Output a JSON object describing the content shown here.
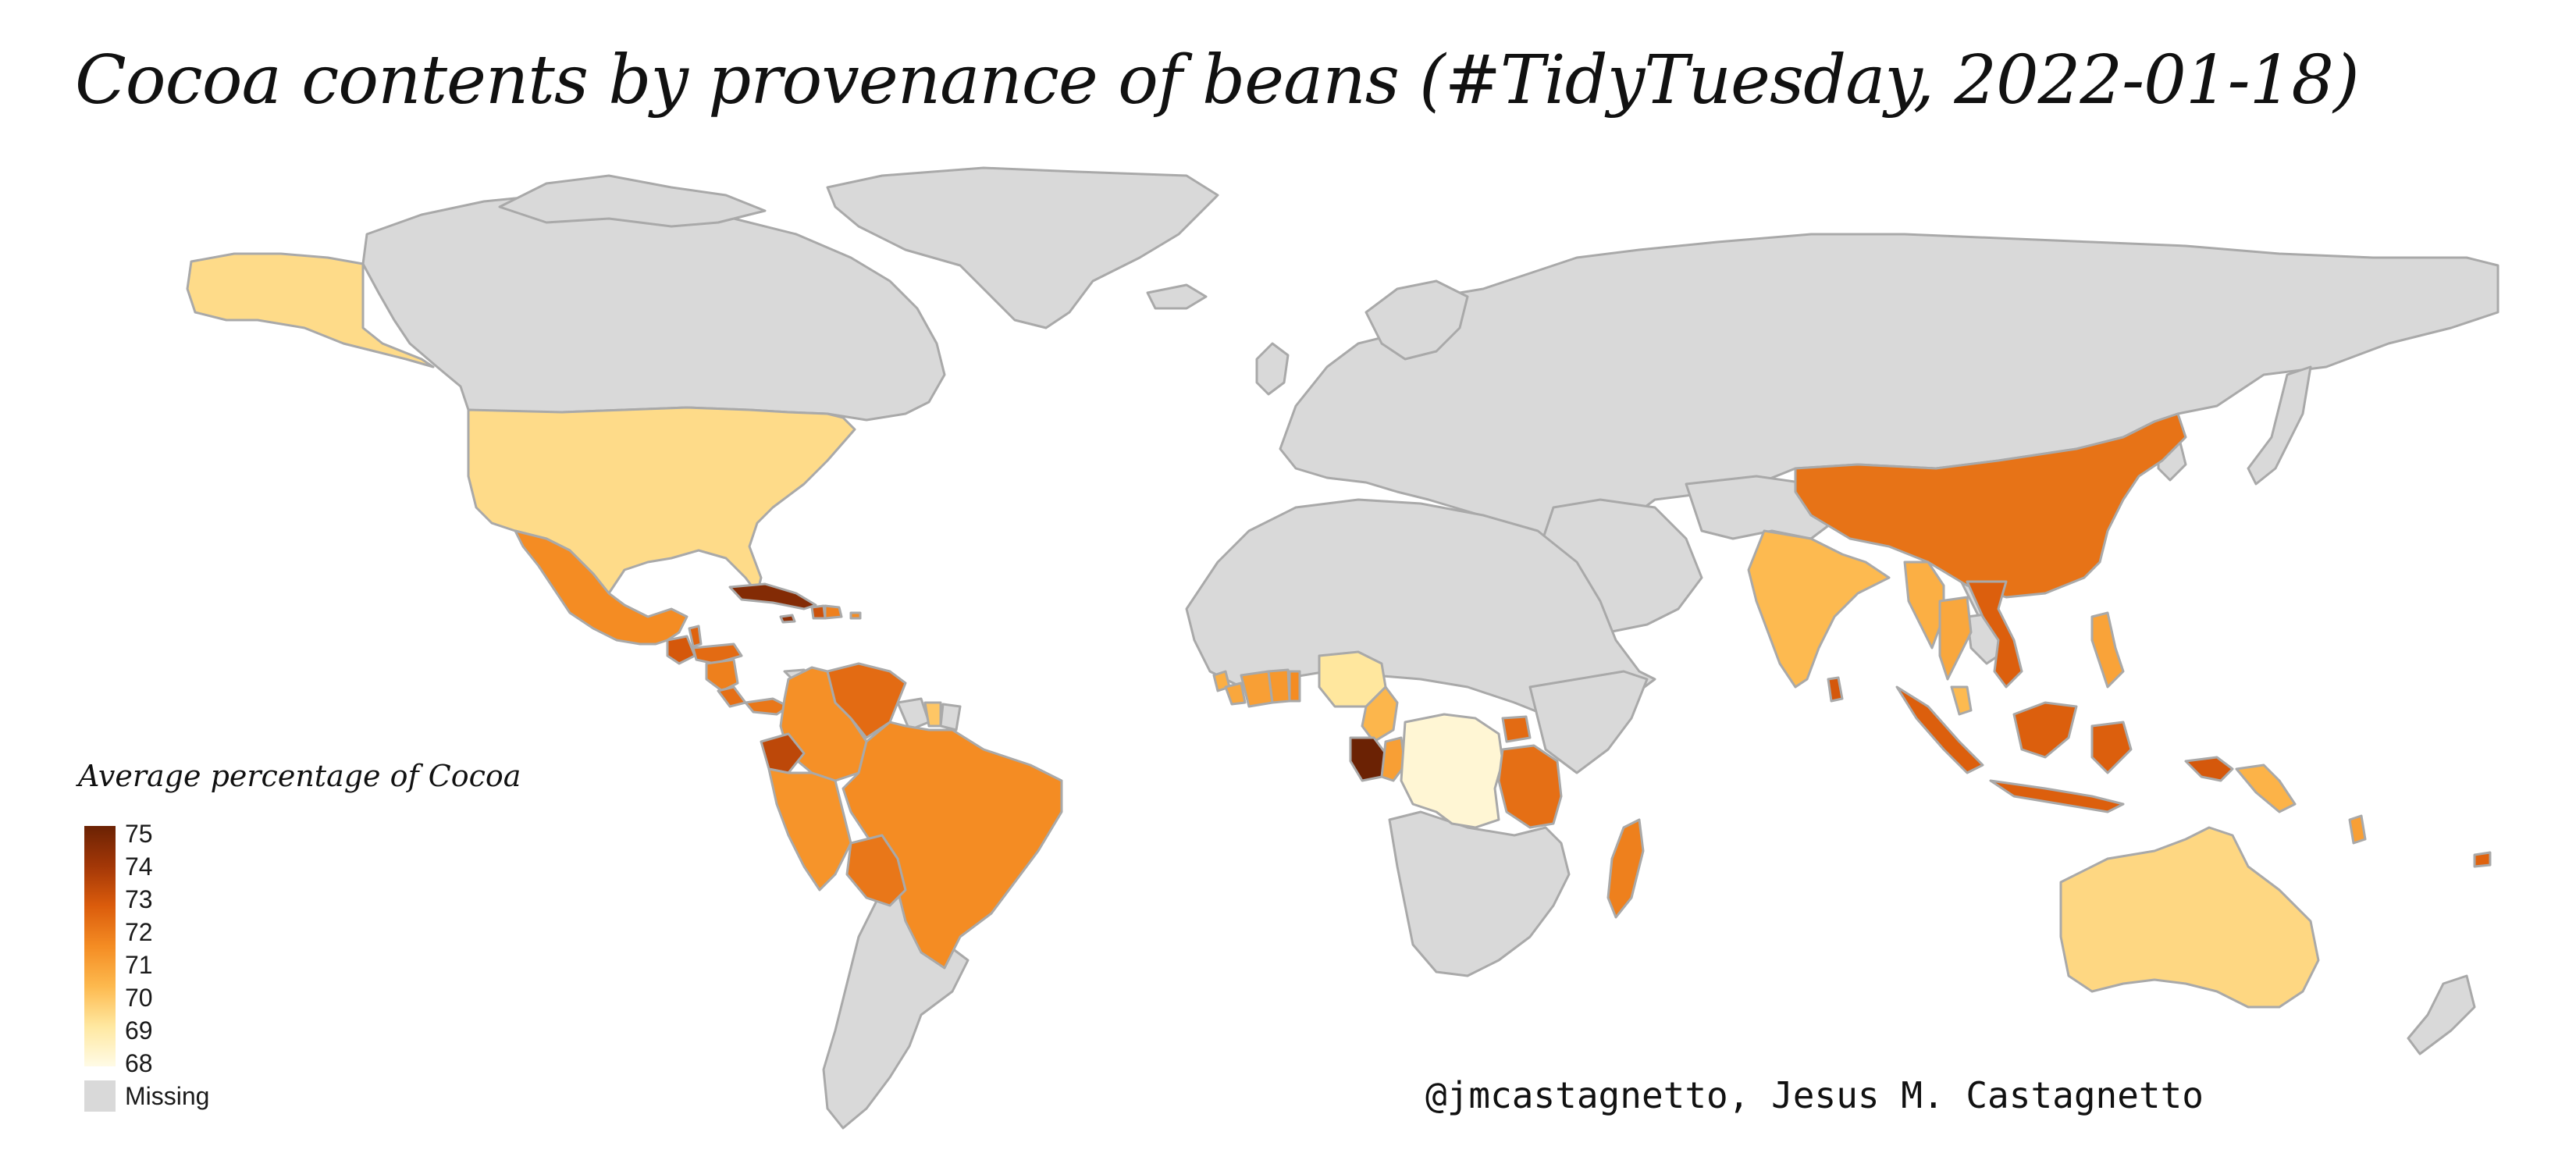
{
  "title": "Cocoa contents by provenance of beans (#TidyTuesday, 2022-01-18)",
  "caption": "@jmcastagnetto, Jesus M. Castagnetto",
  "legend": {
    "title": "Average percentage of Cocoa",
    "ticks": [
      "75",
      "74",
      "73",
      "72",
      "71",
      "70",
      "69",
      "68"
    ],
    "missing_label": "Missing",
    "missing_color": "#d9d9d9",
    "scale_colors": [
      "#fffbe6",
      "#ffe8a0",
      "#fdb94e",
      "#f48c23",
      "#db5c0c",
      "#a33707",
      "#6b2204"
    ]
  },
  "chart_data": {
    "type": "choropleth",
    "variable": "Average percentage of Cocoa",
    "range": [
      68,
      75
    ],
    "missing_color": "#d9d9d9",
    "regions": [
      {
        "name": "Alaska (United States)",
        "value": 69.5
      },
      {
        "name": "United States",
        "value": 69.5
      },
      {
        "name": "Mexico",
        "value": 71.5
      },
      {
        "name": "Guatemala",
        "value": 72.8
      },
      {
        "name": "Belize",
        "value": 72.5
      },
      {
        "name": "Honduras",
        "value": 72.3
      },
      {
        "name": "Nicaragua",
        "value": 71.8
      },
      {
        "name": "Costa Rica",
        "value": 72.2
      },
      {
        "name": "Panama",
        "value": 72.0
      },
      {
        "name": "Cuba",
        "value": 74.5
      },
      {
        "name": "Jamaica",
        "value": 74.2
      },
      {
        "name": "Haiti",
        "value": 73.0
      },
      {
        "name": "Dominican Republic",
        "value": 71.8
      },
      {
        "name": "Puerto Rico",
        "value": 71.5
      },
      {
        "name": "Colombia",
        "value": 71.4
      },
      {
        "name": "Venezuela",
        "value": 72.3
      },
      {
        "name": "Suriname",
        "value": 70.0
      },
      {
        "name": "Ecuador",
        "value": 73.3
      },
      {
        "name": "Peru",
        "value": 71.3
      },
      {
        "name": "Brazil",
        "value": 71.5
      },
      {
        "name": "Bolivia",
        "value": 72.0
      },
      {
        "name": "Ivory Coast",
        "value": 71.0
      },
      {
        "name": "Ghana",
        "value": 71.2
      },
      {
        "name": "Togo",
        "value": 71.5
      },
      {
        "name": "Liberia",
        "value": 70.8
      },
      {
        "name": "Sierra Leone",
        "value": 70.6
      },
      {
        "name": "Nigeria",
        "value": 69.2
      },
      {
        "name": "Cameroon",
        "value": 70.4
      },
      {
        "name": "Gabon",
        "value": 75.0
      },
      {
        "name": "Congo",
        "value": 71.0
      },
      {
        "name": "DR Congo",
        "value": 68.3
      },
      {
        "name": "Uganda",
        "value": 72.3
      },
      {
        "name": "Tanzania",
        "value": 72.2
      },
      {
        "name": "Madagascar",
        "value": 71.8
      },
      {
        "name": "India",
        "value": 70.3
      },
      {
        "name": "Sri Lanka",
        "value": 72.8
      },
      {
        "name": "China",
        "value": 72.1
      },
      {
        "name": "Myanmar",
        "value": 70.6
      },
      {
        "name": "Thailand",
        "value": 70.8
      },
      {
        "name": "Vietnam",
        "value": 72.6
      },
      {
        "name": "Malaysia",
        "value": 70.3
      },
      {
        "name": "Philippines",
        "value": 70.9
      },
      {
        "name": "Indonesia",
        "value": 72.6
      },
      {
        "name": "Papua New Guinea",
        "value": 72.8
      },
      {
        "name": "Solomon Islands",
        "value": 70.5
      },
      {
        "name": "Vanuatu",
        "value": 71.0
      },
      {
        "name": "Fiji",
        "value": 72.5
      },
      {
        "name": "Australia",
        "value": 69.6
      }
    ]
  }
}
